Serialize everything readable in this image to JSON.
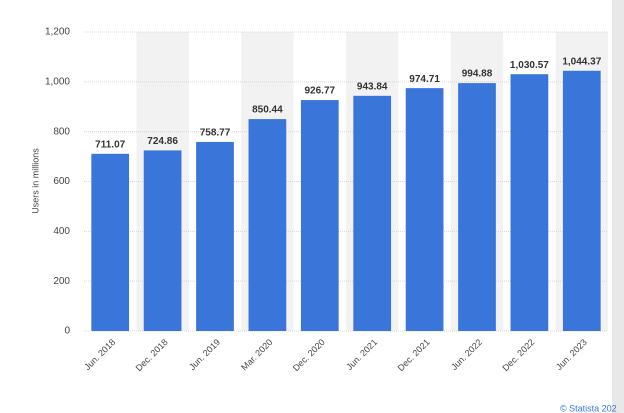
{
  "chart_data": {
    "type": "bar",
    "y_label": "Users in millions",
    "categories": [
      "Jun. 2018",
      "Dec. 2018",
      "Jun. 2019",
      "Mar. 2020",
      "Dec. 2020",
      "Jun. 2021",
      "Dec. 2021",
      "Jun. 2022",
      "Dec. 2022",
      "Jun. 2023"
    ],
    "values": [
      711.07,
      724.86,
      758.77,
      850.44,
      926.77,
      943.84,
      974.71,
      994.88,
      1030.57,
      1044.37
    ],
    "value_labels": [
      "711.07",
      "724.86",
      "758.77",
      "850.44",
      "926.77",
      "943.84",
      "974.71",
      "994.88",
      "1,030.57",
      "1,044.37"
    ],
    "color": "#3a75d9",
    "ylim": [
      0,
      1200
    ],
    "yticks": [
      0,
      200,
      400,
      600,
      800,
      {
        "value": 1000,
        "label": "1,000"
      },
      {
        "value": 1200,
        "label": "1,200"
      }
    ],
    "grid": true,
    "source": "© Statista 202"
  }
}
